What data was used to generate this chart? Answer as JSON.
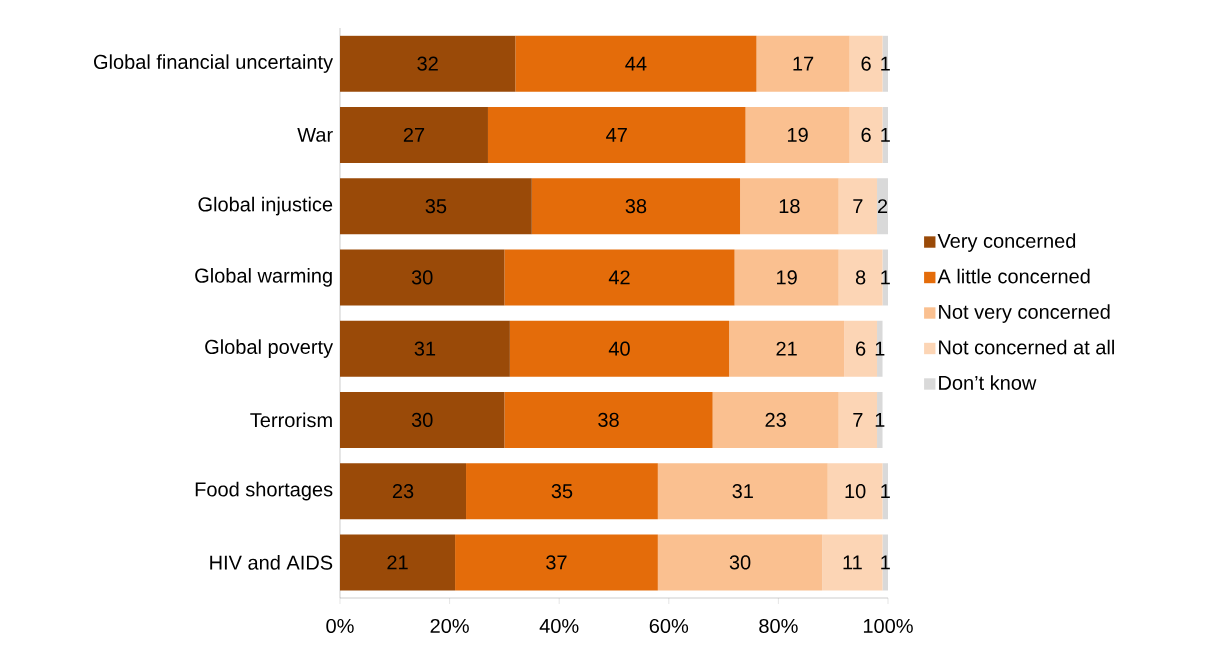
{
  "chart_data": {
    "type": "bar",
    "orientation": "horizontal",
    "stacked": true,
    "data_labels": true,
    "legend": "right",
    "grid": false,
    "categories": [
      "Global financial uncertainty",
      "War",
      "Global injustice",
      "Global warming",
      "Global poverty",
      "Terrorism",
      "Food shortages",
      "HIV and AIDS"
    ],
    "series": [
      {
        "name": "Very concerned",
        "color": "#9a4a08",
        "values": [
          32,
          27,
          35,
          30,
          31,
          30,
          23,
          21
        ]
      },
      {
        "name": "A little concerned",
        "color": "#e46c0a",
        "values": [
          44,
          47,
          38,
          42,
          40,
          38,
          35,
          37
        ]
      },
      {
        "name": "Not very concerned",
        "color": "#fac090",
        "values": [
          17,
          19,
          18,
          19,
          21,
          23,
          31,
          30
        ]
      },
      {
        "name": "Not concerned at all",
        "color": "#fcd5b5",
        "values": [
          6,
          6,
          7,
          8,
          6,
          7,
          10,
          11
        ]
      },
      {
        "name": "Don’t know",
        "color": "#d9d9d9",
        "values": [
          1,
          1,
          2,
          1,
          1,
          1,
          1,
          1
        ]
      }
    ],
    "xlim": [
      0,
      100
    ],
    "xticks": [
      {
        "value": 0,
        "label": "0%"
      },
      {
        "value": 20,
        "label": "20%"
      },
      {
        "value": 40,
        "label": "40%"
      },
      {
        "value": 60,
        "label": "60%"
      },
      {
        "value": 80,
        "label": "80%"
      },
      {
        "value": 100,
        "label": "100%"
      }
    ]
  }
}
